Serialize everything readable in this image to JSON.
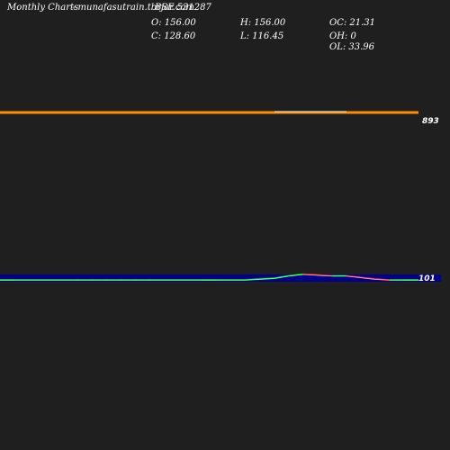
{
  "header": {
    "title": "Monthly Charts",
    "site": "- munafasutrain.tbrjar.com",
    "symbol": "BSE 531287"
  },
  "ohlc": {
    "open": "O: 156.00",
    "close": "C: 128.60",
    "high": "H: 156.00",
    "low": "L: 116.45",
    "oc": "OC: 21.31",
    "oh": "OH: 0",
    "ol": "OL: 33.96"
  },
  "colors": {
    "background": "#1f1f1f",
    "price_line": "#ff8c00",
    "volume_band": "#00008b",
    "up": "#00ff00",
    "down": "#ff3333",
    "label": "#ffffff"
  },
  "chart_data": [
    {
      "type": "line",
      "panel": "price",
      "x": [
        1,
        2,
        3,
        4,
        5,
        6,
        7,
        8,
        9,
        10,
        11,
        12,
        13,
        14,
        15,
        16,
        17,
        18,
        19,
        20,
        21,
        22,
        23,
        24,
        25,
        26,
        27,
        28,
        29,
        30
      ],
      "series": [
        {
          "values": [
            893,
            893,
            893,
            893,
            893,
            893,
            893,
            893,
            893,
            893,
            893,
            893,
            893,
            893,
            893,
            893,
            893,
            893,
            893,
            893,
            893,
            893,
            893,
            893,
            893,
            893,
            893,
            893,
            893,
            893
          ]
        }
      ],
      "tick_labels": [
        "893"
      ]
    },
    {
      "type": "line",
      "panel": "volume",
      "x": [
        1,
        2,
        3,
        4,
        5,
        6,
        7,
        8,
        9,
        10,
        11,
        12,
        13,
        14,
        15,
        16,
        17,
        18,
        19,
        20,
        21,
        22,
        23,
        24,
        25,
        26,
        27,
        28,
        29,
        30
      ],
      "series": [
        {
          "values": [
            101,
            101,
            101,
            101,
            101,
            101,
            101,
            101,
            101,
            101,
            101,
            101,
            101,
            101,
            101,
            101,
            101,
            101,
            102,
            103,
            106,
            108,
            107,
            106,
            106,
            104,
            102,
            101,
            101,
            101
          ]
        }
      ],
      "tick_labels": [
        "101"
      ]
    }
  ]
}
